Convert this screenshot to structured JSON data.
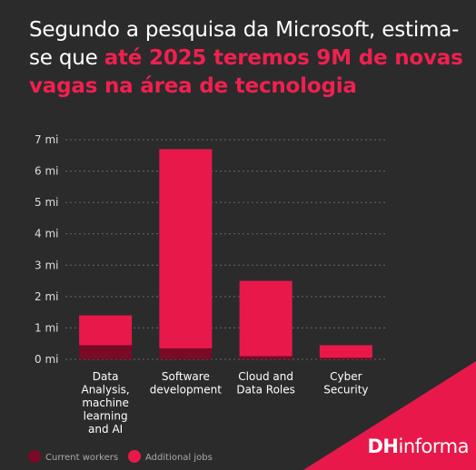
{
  "header": {
    "title_part1": "Segundo a pesquisa da Microsoft, estima-se que ",
    "title_highlight": "até 2025 teremos 9M de novas vagas na área de tecnologia"
  },
  "brand": {
    "d": "DH",
    "rest": "informa"
  },
  "colors": {
    "background": "#2b2b2c",
    "additional": "#e8194a",
    "current": "#7a0a26",
    "grid": "#6a6a6a",
    "text": "#dddddd",
    "corner": "#e8194a"
  },
  "chart_data": {
    "type": "bar",
    "stacked": true,
    "categories": [
      [
        "Data",
        "Analysis,",
        "machine",
        "learning",
        "and AI"
      ],
      [
        "Software",
        "development"
      ],
      [
        "Cloud and",
        "Data Roles"
      ],
      [
        "Cyber",
        "Security"
      ]
    ],
    "series": [
      {
        "name": "Current workers",
        "color": "#7a0a26",
        "values": [
          0.45,
          0.35,
          0.1,
          0.05
        ]
      },
      {
        "name": "Additional jobs",
        "color": "#e8194a",
        "values": [
          0.95,
          6.35,
          2.4,
          0.4
        ]
      }
    ],
    "ylim": [
      0,
      7
    ],
    "yticks": [
      "0 mi",
      "1 mi",
      "2 mi",
      "3 mi",
      "4 mi",
      "5 mi",
      "6 mi",
      "7 mi"
    ],
    "grid": true,
    "legend": "bottom-left"
  }
}
